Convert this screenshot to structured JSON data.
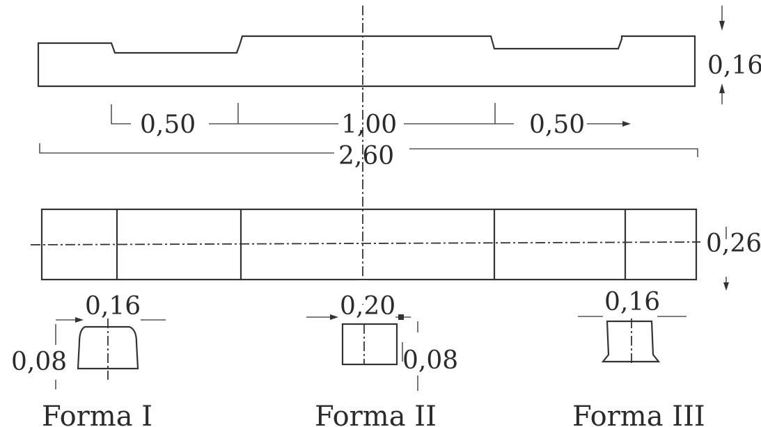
{
  "dimensions": {
    "top_height": "0,16",
    "left_segment": "0,50",
    "center_segment": "1,00",
    "right_segment": "0,50",
    "total_length": "2,60",
    "plan_width": "0,26"
  },
  "sections": [
    {
      "caption": "Forma I",
      "width": "0,16",
      "height": "0,08"
    },
    {
      "caption": "Forma II",
      "width": "0,20",
      "height": "0,08"
    },
    {
      "caption": "Forma III",
      "width": "0,16"
    }
  ]
}
